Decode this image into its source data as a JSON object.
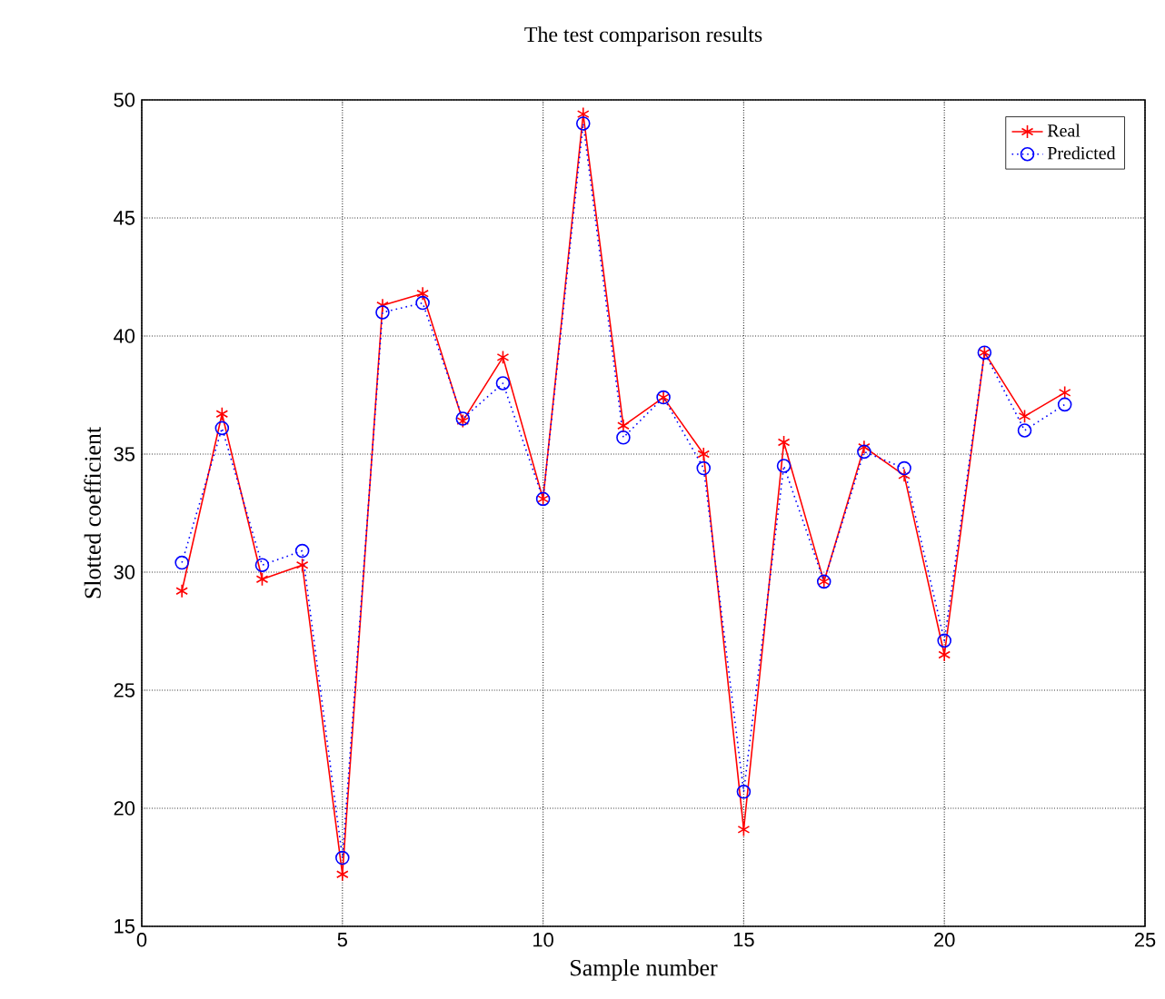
{
  "chart_data": {
    "type": "line",
    "title": "The test comparison results",
    "xlabel": "Sample number",
    "ylabel": "Slotted  coefficient",
    "x": [
      1,
      2,
      3,
      4,
      5,
      6,
      7,
      8,
      9,
      10,
      11,
      12,
      13,
      14,
      15,
      16,
      17,
      18,
      19,
      20,
      21,
      22,
      23
    ],
    "series": [
      {
        "name": "Real",
        "color": "#ff0000",
        "marker": "cross",
        "line_style": "solid",
        "values": [
          29.2,
          36.7,
          29.7,
          30.3,
          17.2,
          41.3,
          41.8,
          36.4,
          39.1,
          33.1,
          49.4,
          36.2,
          37.4,
          35.0,
          19.1,
          35.5,
          29.6,
          35.3,
          34.1,
          26.5,
          39.3,
          36.6,
          37.6
        ]
      },
      {
        "name": "Predicted",
        "color": "#0000ff",
        "marker": "circle",
        "line_style": "dotted",
        "values": [
          30.4,
          36.1,
          30.3,
          30.9,
          17.9,
          41.0,
          41.4,
          36.5,
          38.0,
          33.1,
          49.0,
          35.7,
          37.4,
          34.4,
          20.7,
          34.5,
          29.6,
          35.1,
          34.4,
          27.1,
          39.3,
          36.0,
          37.1
        ]
      }
    ],
    "xlim": [
      0,
      25
    ],
    "xticks": [
      0,
      5,
      10,
      15,
      20,
      25
    ],
    "ylim": [
      15,
      50
    ],
    "yticks": [
      15,
      20,
      25,
      30,
      35,
      40,
      45,
      50
    ],
    "grid": true,
    "legend": "top right"
  }
}
